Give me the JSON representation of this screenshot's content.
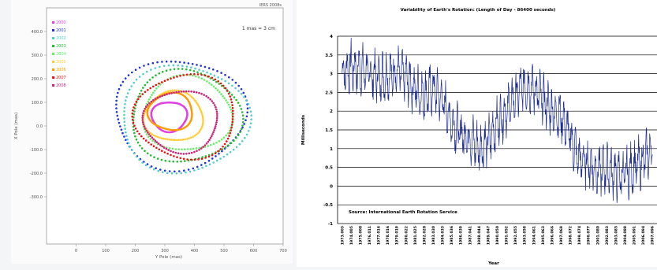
{
  "chart_data": [
    {
      "type": "scatter",
      "title": "",
      "corner_label": "IERS 2008s",
      "scale_note": "1 mas = 3 cm",
      "xlabel": "Y Pole (mas)",
      "ylabel": "X Pole (mas)",
      "xlim": [
        -100,
        700
      ],
      "ylim": [
        -500,
        500
      ],
      "xticks": [
        "0",
        "100",
        "200",
        "300",
        "400",
        "500",
        "600",
        "700"
      ],
      "yticks": [
        "400.0",
        "300.0",
        "200.0",
        "100.0",
        "0.0",
        "-100.0",
        "-200.0",
        "-300.0"
      ],
      "legend_position": "top-left",
      "series": [
        {
          "name": "2000",
          "color": "#e040e0",
          "cx": 315,
          "cy": 40,
          "r": 60,
          "phase": 0.0
        },
        {
          "name": "2001",
          "color": "#2233dd",
          "cx": 350,
          "cy": 50,
          "r": 220,
          "phase": 0.1
        },
        {
          "name": "2002",
          "color": "#55cccc",
          "cx": 365,
          "cy": 30,
          "r": 215,
          "phase": 0.2
        },
        {
          "name": "2003",
          "color": "#22bb33",
          "cx": 370,
          "cy": 40,
          "r": 185,
          "phase": 0.3
        },
        {
          "name": "2004",
          "color": "#66ee66",
          "cx": 375,
          "cy": 50,
          "r": 150,
          "phase": 0.4
        },
        {
          "name": "2005",
          "color": "#ffcc33",
          "cx": 330,
          "cy": 40,
          "r": 100,
          "phase": 0.5
        },
        {
          "name": "2006",
          "color": "#ff9900",
          "cx": 320,
          "cy": 60,
          "r": 75,
          "phase": 0.6
        },
        {
          "name": "2007",
          "color": "#ee1111",
          "cx": 370,
          "cy": 40,
          "r": 170,
          "phase": 0.7
        },
        {
          "name": "2008",
          "color": "#cc2277",
          "cx": 355,
          "cy": 20,
          "r": 125,
          "phase": 0.8
        }
      ]
    },
    {
      "type": "line",
      "title": "Variability of Earth's Rotation: (Length of Day - 86400 seconds)",
      "xlabel": "Year",
      "ylabel": "Milliseconds",
      "ylim": [
        -1,
        4
      ],
      "yticks": [
        "4",
        "3.5",
        "3",
        "2.5",
        "2",
        "1.5",
        "1",
        "0.5",
        "0",
        "-0.5",
        "-1"
      ],
      "source_note": "Source: International Earth Rotation Service",
      "line_color": "#1a2a99",
      "categories": [
        "1973.003",
        "1974.005",
        "1975.008",
        "1976.011",
        "1977.014",
        "1978.016",
        "1979.019",
        "1980.022",
        "1981.025",
        "1982.028",
        "1983.030",
        "1984.033",
        "1985.036",
        "1986.039",
        "1987.041",
        "1988.044",
        "1989.047",
        "1990.050",
        "1991.052",
        "1992.055",
        "1993.058",
        "1994.061",
        "1995.063",
        "1996.066",
        "1997.069",
        "1998.072",
        "1999.074",
        "2000.077",
        "2001.080",
        "2002.083",
        "2003.085",
        "2004.088",
        "2005.091",
        "2006.094",
        "2007.096"
      ],
      "values": [
        3.0,
        3.2,
        3.1,
        3.0,
        2.9,
        2.95,
        3.05,
        2.9,
        2.6,
        2.4,
        2.6,
        2.3,
        1.7,
        1.4,
        1.3,
        1.0,
        1.2,
        1.7,
        2.0,
        2.4,
        2.7,
        2.6,
        2.3,
        2.0,
        1.9,
        1.3,
        0.7,
        0.6,
        0.4,
        0.5,
        0.3,
        0.3,
        0.5,
        0.7,
        1.0
      ]
    }
  ]
}
